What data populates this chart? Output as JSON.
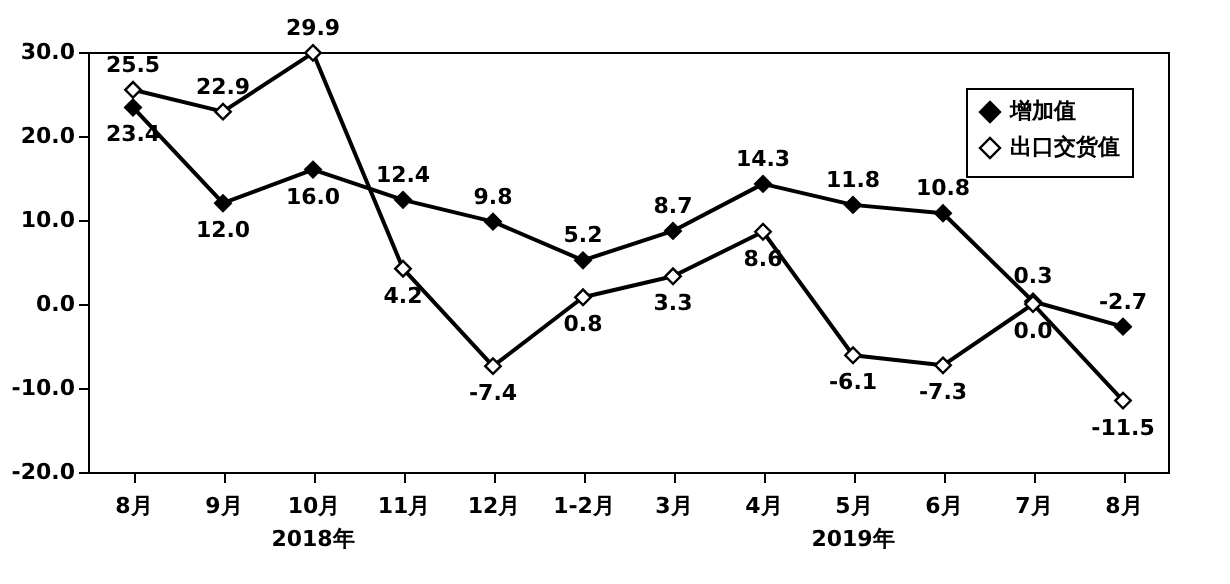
{
  "chart_data": {
    "type": "line",
    "categories": [
      "8月",
      "9月",
      "10月",
      "11月",
      "12月",
      "1-2月",
      "3月",
      "4月",
      "5月",
      "6月",
      "7月",
      "8月"
    ],
    "series": [
      {
        "name": "增加值",
        "color": "#000000",
        "values": [
          23.4,
          12.0,
          16.0,
          12.4,
          9.8,
          5.2,
          8.7,
          14.3,
          11.8,
          10.8,
          0.3,
          -2.7
        ],
        "value_labels": [
          "23.4",
          "12.0",
          "16.0",
          "12.4",
          "9.8",
          "5.2",
          "8.7",
          "14.3",
          "11.8",
          "10.8",
          "0.3",
          "-2.7"
        ]
      },
      {
        "name": "出口交货值",
        "color": "#000000",
        "values": [
          25.5,
          22.9,
          29.9,
          4.2,
          -7.4,
          0.8,
          3.3,
          8.6,
          -6.1,
          -7.3,
          0.0,
          -11.5
        ],
        "value_labels": [
          "25.5",
          "22.9",
          "29.9",
          "4.2",
          "-7.4",
          "0.8",
          "3.3",
          "8.6",
          "-6.1",
          "-7.3",
          "0.0",
          "-11.5"
        ]
      }
    ],
    "ylim": [
      -20,
      30
    ],
    "yticks": [
      {
        "value": -20,
        "label": "-20.0"
      },
      {
        "value": -10,
        "label": "-10.0"
      },
      {
        "value": 0,
        "label": "0.0"
      },
      {
        "value": 10,
        "label": "10.0"
      },
      {
        "value": 20,
        "label": "20.0"
      },
      {
        "value": 30,
        "label": "30.0"
      }
    ],
    "annotations": [
      "2018年",
      "2019年"
    ],
    "marker": "diamond",
    "legend": "top right",
    "grid": false,
    "line_style": "solid"
  }
}
